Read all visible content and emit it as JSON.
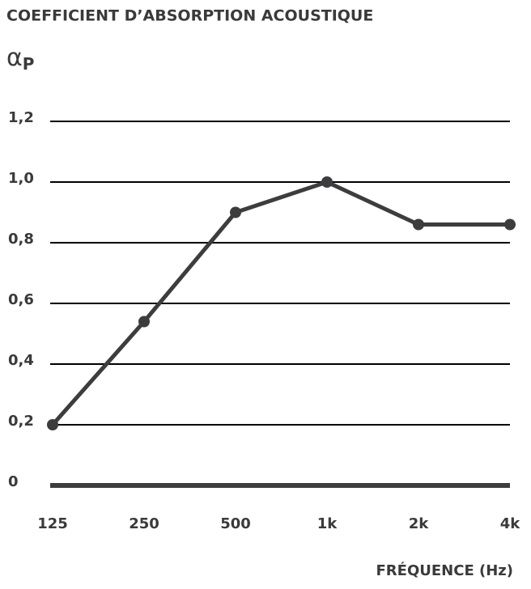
{
  "chart_data": {
    "type": "line",
    "title": "COEFFICIENT D’ABSORPTION ACOUSTIQUE",
    "ylabel": {
      "symbol": "α",
      "subscript": "P"
    },
    "xlabel": "FRÉQUENCE (Hz)",
    "categories": [
      "125",
      "250",
      "500",
      "1k",
      "2k",
      "4k"
    ],
    "series": [
      {
        "name": null,
        "color": "#3d3d3f",
        "values": [
          0.2,
          0.54,
          0.9,
          1.0,
          0.86,
          0.86
        ]
      }
    ],
    "ylim": [
      0,
      1.2
    ],
    "yticks": [
      0,
      {
        "value": 0.2,
        "label": "0,2"
      },
      {
        "value": 0.4,
        "label": "0,4"
      },
      {
        "value": 0.6,
        "label": "0,6"
      },
      {
        "value": 0.8,
        "label": "0,8"
      },
      {
        "value": 1.0,
        "label": "1,0"
      },
      {
        "value": 1.2,
        "label": "1,2"
      }
    ],
    "grid": true
  }
}
